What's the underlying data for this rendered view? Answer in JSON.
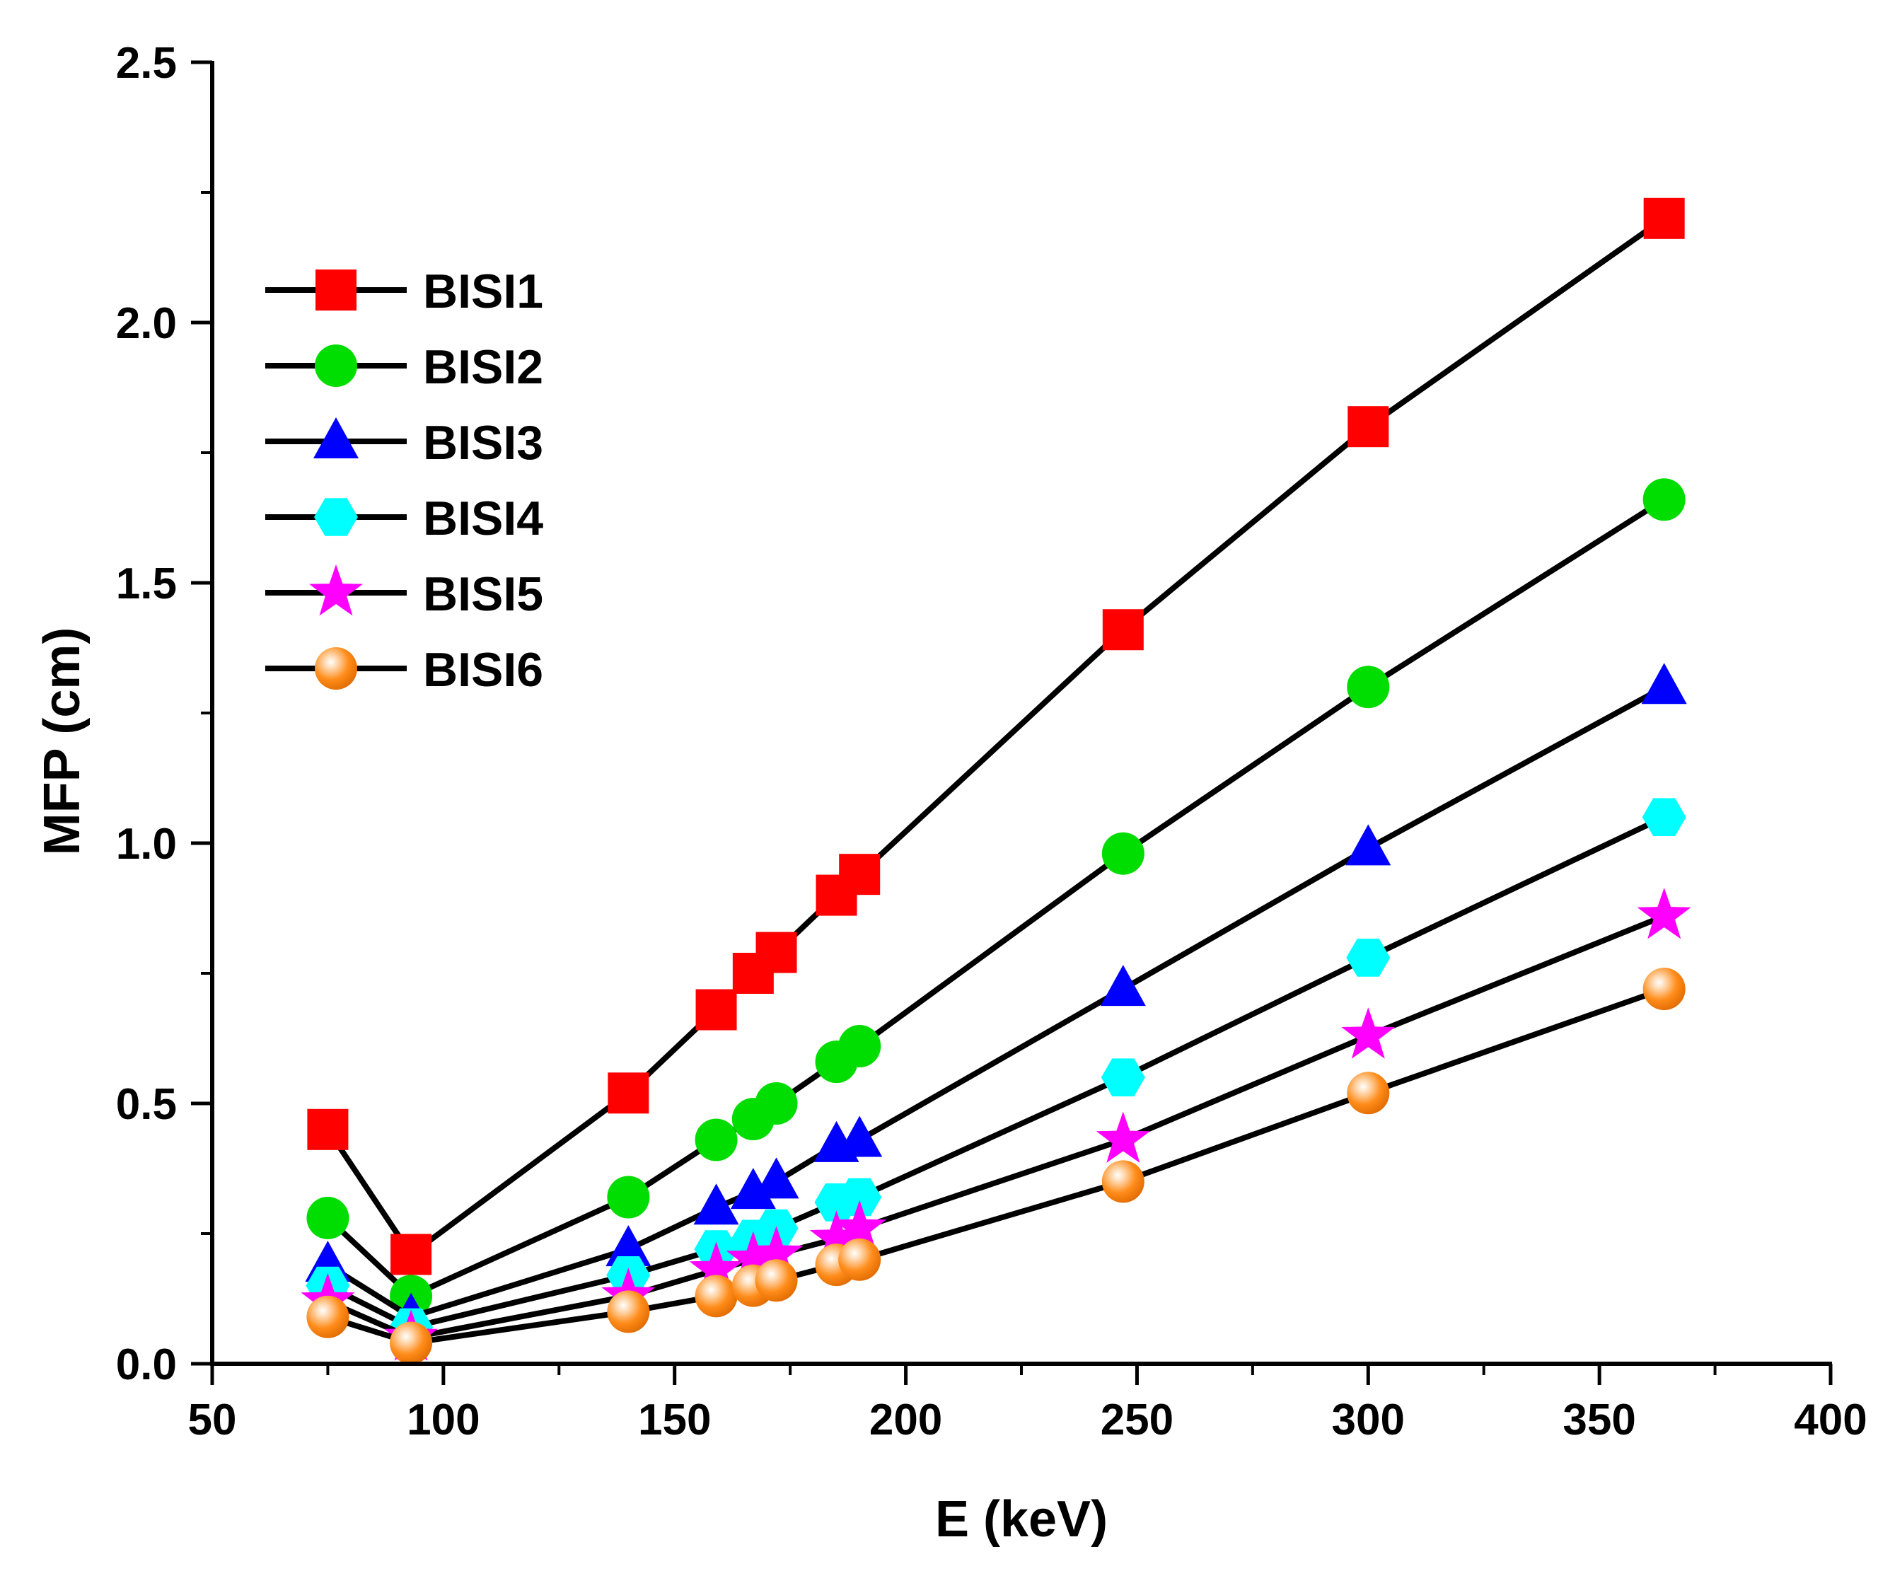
{
  "chart_data": {
    "type": "line",
    "title": "",
    "xlabel": "E (keV)",
    "ylabel": "MFP (cm)",
    "xlim": [
      50,
      400
    ],
    "ylim": [
      0.0,
      2.5
    ],
    "xticks": [
      "50",
      "100",
      "150",
      "200",
      "250",
      "300",
      "350",
      "400"
    ],
    "yticks": [
      "0.0",
      "0.5",
      "1.0",
      "1.5",
      "2.0",
      "2.5"
    ],
    "grid": false,
    "legend_position": "top-left",
    "x": [
      75,
      93,
      140,
      159,
      167,
      172,
      185,
      190,
      247,
      300,
      364
    ],
    "series": [
      {
        "name": "BISI1",
        "marker": "square",
        "color": "#ff0000",
        "values": [
          0.45,
          0.21,
          0.52,
          0.68,
          0.75,
          0.79,
          0.9,
          0.94,
          1.41,
          1.8,
          2.2
        ]
      },
      {
        "name": "BISI2",
        "marker": "circle",
        "color": "#00dd00",
        "values": [
          0.28,
          0.13,
          0.32,
          0.43,
          0.47,
          0.5,
          0.58,
          0.61,
          0.98,
          1.3,
          1.66
        ]
      },
      {
        "name": "BISI3",
        "marker": "triangle",
        "color": "#0000ff",
        "values": [
          0.19,
          0.09,
          0.22,
          0.3,
          0.33,
          0.35,
          0.42,
          0.43,
          0.72,
          0.99,
          1.3
        ]
      },
      {
        "name": "BISI4",
        "marker": "hexagon",
        "color": "#00ffff",
        "values": [
          0.15,
          0.07,
          0.17,
          0.22,
          0.24,
          0.26,
          0.31,
          0.32,
          0.55,
          0.78,
          1.05
        ]
      },
      {
        "name": "BISI5",
        "marker": "star",
        "color": "#ff00ff",
        "values": [
          0.12,
          0.05,
          0.13,
          0.18,
          0.2,
          0.21,
          0.24,
          0.26,
          0.43,
          0.63,
          0.86
        ]
      },
      {
        "name": "BISI6",
        "marker": "sphere",
        "color": "#ff8c1a",
        "values": [
          0.09,
          0.04,
          0.1,
          0.13,
          0.15,
          0.16,
          0.19,
          0.2,
          0.35,
          0.52,
          0.72
        ]
      }
    ]
  }
}
